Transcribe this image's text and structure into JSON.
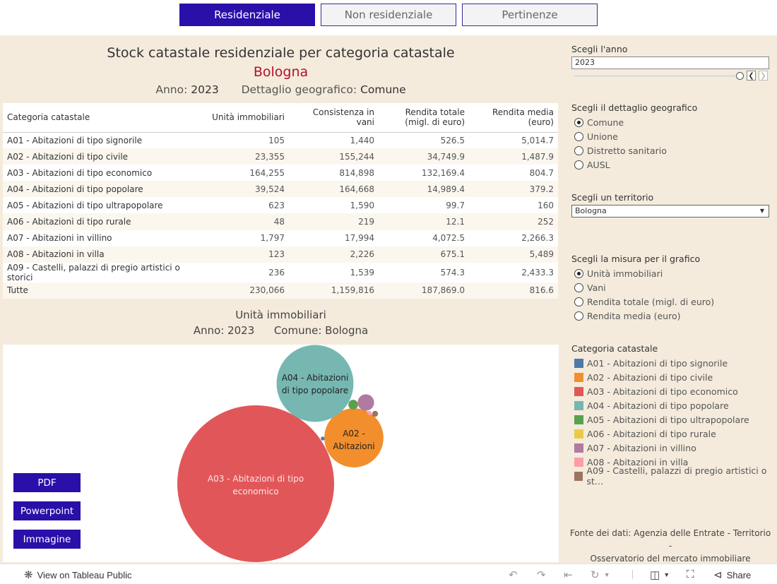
{
  "tabs": [
    {
      "label": "Residenziale",
      "active": true
    },
    {
      "label": "Non residenziale",
      "active": false
    },
    {
      "label": "Pertinenze",
      "active": false
    }
  ],
  "header": {
    "title": "Stock catastale residenziale per categoria catastale",
    "city": "Bologna",
    "year_label": "Anno:",
    "year_value": "2023",
    "detail_label": "Dettaglio geografico:",
    "detail_value": "Comune"
  },
  "table": {
    "columns": [
      "Categoria catastale",
      "Unità immobiliari",
      "Consistenza in vani",
      "Rendita totale (migl. di euro)",
      "Rendita media (euro)"
    ],
    "rows": [
      [
        "A01 - Abitazioni di tipo signorile",
        "105",
        "1,440",
        "526.5",
        "5,014.7"
      ],
      [
        "A02 - Abitazioni di tipo civile",
        "23,355",
        "155,244",
        "34,749.9",
        "1,487.9"
      ],
      [
        "A03 - Abitazioni di tipo economico",
        "164,255",
        "814,898",
        "132,169.4",
        "804.7"
      ],
      [
        "A04 - Abitazioni di tipo popolare",
        "39,524",
        "164,668",
        "14,989.4",
        "379.2"
      ],
      [
        "A05 - Abitazioni di tipo ultrapopolare",
        "623",
        "1,590",
        "99.7",
        "160"
      ],
      [
        "A06 - Abitazioni di tipo rurale",
        "48",
        "219",
        "12.1",
        "252"
      ],
      [
        "A07 - Abitazioni in villino",
        "1,797",
        "17,994",
        "4,072.5",
        "2,266.3"
      ],
      [
        "A08 - Abitazioni in villa",
        "123",
        "2,226",
        "675.1",
        "5,489"
      ],
      [
        "A09 - Castelli, palazzi di pregio artistici o storici",
        "236",
        "1,539",
        "574.3",
        "2,433.3"
      ],
      [
        "Tutte",
        "230,066",
        "1,159,816",
        "187,869.0",
        "816.6"
      ]
    ]
  },
  "chart": {
    "title": "Unità immobiliari",
    "year_label": "Anno: 2023",
    "place_label": "Comune: Bologna",
    "bubble_labels": {
      "A03": [
        "A03 - Abitazioni di tipo",
        "economico"
      ],
      "A04": [
        "A04 - Abitazioni",
        "di tipo popolare"
      ],
      "A02": [
        "A02 -",
        "Abitazioni"
      ]
    }
  },
  "chart_data": {
    "type": "bubble",
    "title": "Unità immobiliari",
    "categories": [
      "A01",
      "A02",
      "A03",
      "A04",
      "A05",
      "A06",
      "A07",
      "A08",
      "A09"
    ],
    "values": [
      105,
      23355,
      164255,
      39524,
      623,
      48,
      1797,
      123,
      236
    ],
    "colors": [
      "#4e79a7",
      "#f28e2b",
      "#e15759",
      "#76b7b2",
      "#59a14f",
      "#edc948",
      "#b07aa1",
      "#ff9da7",
      "#9c755f"
    ]
  },
  "buttons": {
    "pdf": "PDF",
    "ppt": "Powerpoint",
    "img": "Immagine"
  },
  "panel": {
    "year_label": "Scegli l'anno",
    "year_value": "2023",
    "geo_label": "Scegli il dettaglio geografico",
    "geo_options": [
      "Comune",
      "Unione",
      "Distretto sanitario",
      "AUSL"
    ],
    "geo_selected": 0,
    "territory_label": "Scegli un territorio",
    "territory_value": "Bologna",
    "measure_label": "Scegli la misura per il grafico",
    "measure_options": [
      "Unità immobiliari",
      "Vani",
      "Rendita totale (migl. di euro)",
      "Rendita media (euro)"
    ],
    "measure_selected": 0,
    "legend_title": "Categoria catastale",
    "legend": [
      {
        "label": "A01 - Abitazioni di tipo signorile",
        "color": "#4e79a7"
      },
      {
        "label": "A02 - Abitazioni di tipo civile",
        "color": "#f28e2b"
      },
      {
        "label": "A03 - Abitazioni di tipo economico",
        "color": "#e15759"
      },
      {
        "label": "A04 - Abitazioni di tipo popolare",
        "color": "#76b7b2"
      },
      {
        "label": "A05 - Abitazioni di tipo ultrapopolare",
        "color": "#59a14f"
      },
      {
        "label": "A06 - Abitazioni di tipo rurale",
        "color": "#edc948"
      },
      {
        "label": "A07 - Abitazioni in villino",
        "color": "#b07aa1"
      },
      {
        "label": "A08 - Abitazioni in villa",
        "color": "#ff9da7"
      },
      {
        "label": "A09 - Castelli, palazzi di pregio artistici o st…",
        "color": "#9c755f"
      }
    ],
    "source_line1": "Fonte dei dati: Agenzia delle Entrate - Territorio -",
    "source_line2": "Osservatorio del mercato immobiliare"
  },
  "toolbar": {
    "view_label": "View on Tableau Public",
    "share_label": "Share"
  }
}
